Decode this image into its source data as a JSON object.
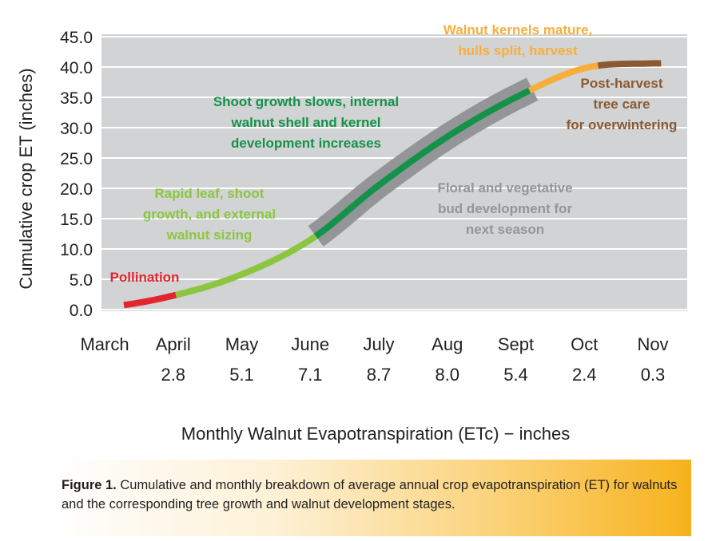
{
  "chart_data": {
    "type": "line",
    "title": "",
    "xlabel": "Monthly Walnut Evapotranspiration (ETc) − inches",
    "ylabel": "Cumulative crop ET (inches)",
    "ylim": [
      0,
      45
    ],
    "yticks": [
      "0.0",
      "5.0",
      "10.0",
      "15.0",
      "20.0",
      "25.0",
      "30.0",
      "35.0",
      "40.0",
      "45.0"
    ],
    "grid": true,
    "categories": [
      "March",
      "April",
      "May",
      "June",
      "July",
      "Aug",
      "Sept",
      "Oct",
      "Nov"
    ],
    "monthly_et": [
      "",
      "2.8",
      "5.1",
      "7.1",
      "8.7",
      "8.0",
      "5.4",
      "2.4",
      "0.3"
    ],
    "series": [
      {
        "values": [
          0.4,
          2.3,
          5.8,
          11.5,
          20.5,
          28.5,
          35.0,
          39.8,
          40.6
        ]
      }
    ],
    "stages": [
      {
        "label": [
          "Pollination"
        ],
        "color": "#e2262e"
      },
      {
        "label": [
          "Rapid leaf, shoot",
          "growth, and external",
          "walnut sizing"
        ],
        "color": "#8cc641"
      },
      {
        "label": [
          "Shoot growth slows, internal",
          "walnut shell and kernel",
          "development increases"
        ],
        "color": "#14924a"
      },
      {
        "label": [
          "Floral and vegetative",
          "bud development for",
          "next season"
        ],
        "color": "#939598"
      },
      {
        "label": [
          "Walnut kernels mature,",
          "hulls split, harvest"
        ],
        "color": "#f9ae3c"
      },
      {
        "label": [
          "Post-harvest",
          "tree care",
          "for overwintering"
        ],
        "color": "#8b5a32"
      }
    ]
  },
  "caption": {
    "bold": "Figure 1.",
    "text": " Cumulative and monthly breakdown of average annual crop evapotranspiration (ET) for walnuts and the corresponding tree growth and walnut development stages."
  }
}
